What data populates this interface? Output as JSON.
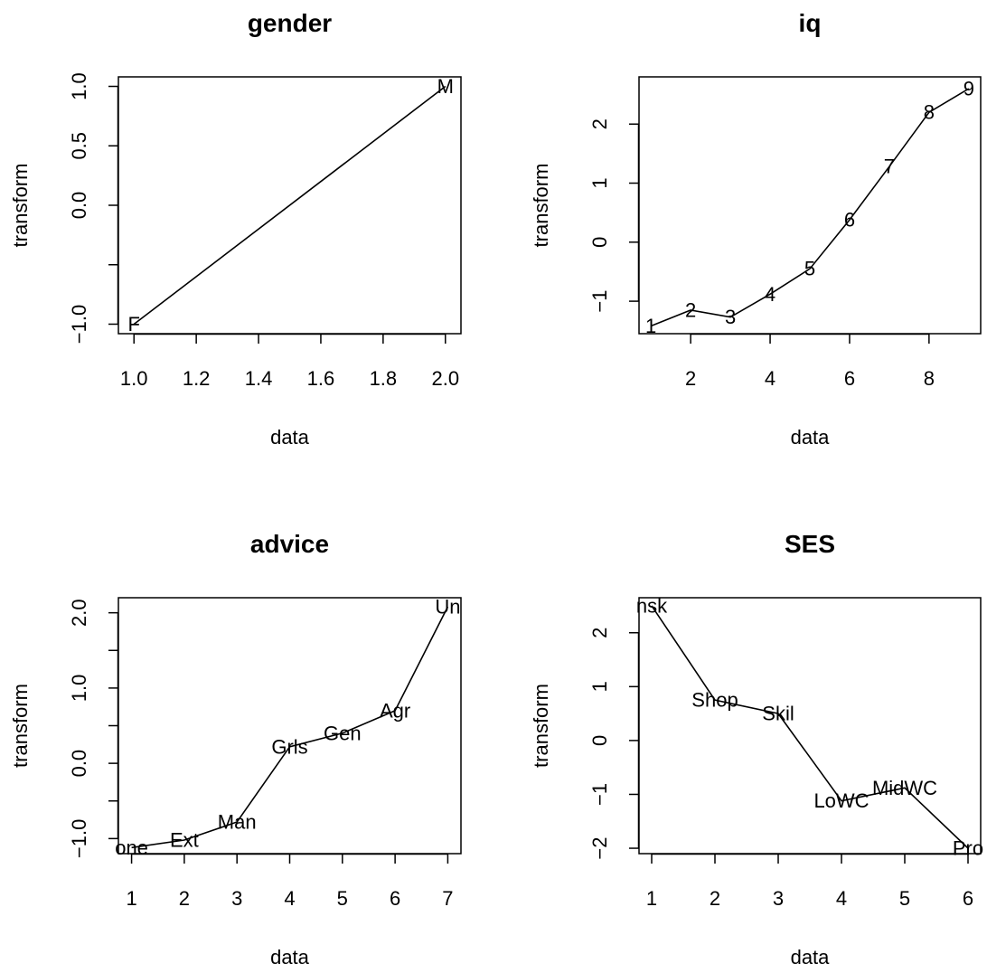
{
  "chart_data": [
    {
      "type": "line",
      "title": "gender",
      "xlabel": "data",
      "ylabel": "transform",
      "xlim": [
        0.95,
        2.05
      ],
      "ylim": [
        -1.08,
        1.08
      ],
      "x_ticks": [
        "1.0",
        "1.2",
        "1.4",
        "1.6",
        "1.8",
        "2.0"
      ],
      "y_ticks": [
        "-1.0",
        "",
        "0.0",
        "0.5",
        "1.0"
      ],
      "points": [
        {
          "label": "F",
          "x": 1,
          "y": -1.0
        },
        {
          "label": "M",
          "x": 2,
          "y": 1.0
        }
      ]
    },
    {
      "type": "line",
      "title": "iq",
      "xlabel": "data",
      "ylabel": "transform",
      "xlim": [
        0.7,
        9.3
      ],
      "ylim": [
        -1.55,
        2.8
      ],
      "x_ticks": [
        "2",
        "4",
        "6",
        "8"
      ],
      "y_ticks": [
        "-1",
        "0",
        "1",
        "2"
      ],
      "points": [
        {
          "label": "1",
          "x": 1,
          "y": -1.42
        },
        {
          "label": "2",
          "x": 2,
          "y": -1.15
        },
        {
          "label": "3",
          "x": 3,
          "y": -1.27
        },
        {
          "label": "4",
          "x": 4,
          "y": -0.88
        },
        {
          "label": "5",
          "x": 5,
          "y": -0.45
        },
        {
          "label": "6",
          "x": 6,
          "y": 0.38
        },
        {
          "label": "7",
          "x": 7,
          "y": 1.28
        },
        {
          "label": "8",
          "x": 8,
          "y": 2.2
        },
        {
          "label": "9",
          "x": 9,
          "y": 2.6
        }
      ]
    },
    {
      "type": "line",
      "title": "advice",
      "xlabel": "data",
      "ylabel": "transform",
      "xlim": [
        0.75,
        7.25
      ],
      "ylim": [
        -1.2,
        2.2
      ],
      "x_ticks": [
        "1",
        "2",
        "3",
        "4",
        "5",
        "6",
        "7"
      ],
      "y_ticks": [
        "-1.0",
        "",
        "0.0",
        "",
        "1.0",
        "",
        "2.0"
      ],
      "points": [
        {
          "label": "one",
          "x": 1,
          "y": -1.12
        },
        {
          "label": "Ext",
          "x": 2,
          "y": -1.02
        },
        {
          "label": "Man",
          "x": 3,
          "y": -0.78
        },
        {
          "label": "Grls",
          "x": 4,
          "y": 0.22
        },
        {
          "label": "Gen",
          "x": 5,
          "y": 0.4
        },
        {
          "label": "Agr",
          "x": 6,
          "y": 0.7
        },
        {
          "label": "Un",
          "x": 7,
          "y": 2.08
        }
      ]
    },
    {
      "type": "line",
      "title": "SES",
      "xlabel": "data",
      "ylabel": "transform",
      "xlim": [
        0.8,
        6.2
      ],
      "ylim": [
        -2.1,
        2.65
      ],
      "x_ticks": [
        "1",
        "2",
        "3",
        "4",
        "5",
        "6"
      ],
      "y_ticks": [
        "-2",
        "-1",
        "0",
        "1",
        "2"
      ],
      "points": [
        {
          "label": "nsk",
          "x": 1,
          "y": 2.5
        },
        {
          "label": "Shop",
          "x": 2,
          "y": 0.75
        },
        {
          "label": "Skil",
          "x": 3,
          "y": 0.5
        },
        {
          "label": "LoWC",
          "x": 4,
          "y": -1.12
        },
        {
          "label": "MidWC",
          "x": 5,
          "y": -0.88
        },
        {
          "label": "Pro",
          "x": 6,
          "y": -2.0
        }
      ]
    }
  ]
}
